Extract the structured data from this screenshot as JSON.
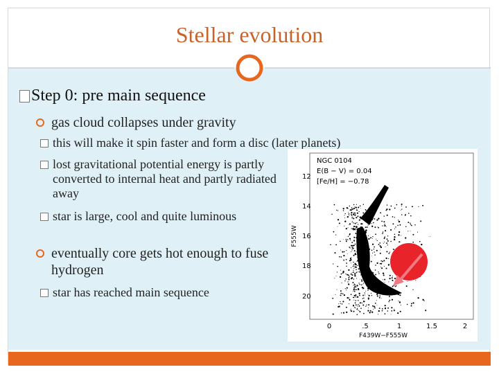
{
  "header": {
    "title": "Stellar evolution"
  },
  "body": {
    "heading": "Step 0: pre main sequence",
    "items": [
      {
        "text": "gas cloud collapses under gravity",
        "subitems": [
          "this will make it spin faster and form a disc (later planets)",
          "lost gravitational potential energy is partly converted to internal heat and partly radiated away",
          "star is large, cool and quite luminous"
        ]
      },
      {
        "text": "eventually core gets hot enough to fuse hydrogen",
        "subitems": [
          "star has reached main sequence"
        ]
      }
    ]
  },
  "figure": {
    "labels": [
      "NGC 0104",
      "E(B − V) = 0.04",
      "[Fe/H] = −0.78"
    ],
    "x_axis_label": "F439W−F555W",
    "y_axis_label": "F555W",
    "x_tick_labels": [
      "0",
      ".5",
      "1",
      "1.5",
      "2"
    ],
    "y_tick_labels": [
      "12",
      "14",
      "16",
      "18",
      "20"
    ]
  }
}
